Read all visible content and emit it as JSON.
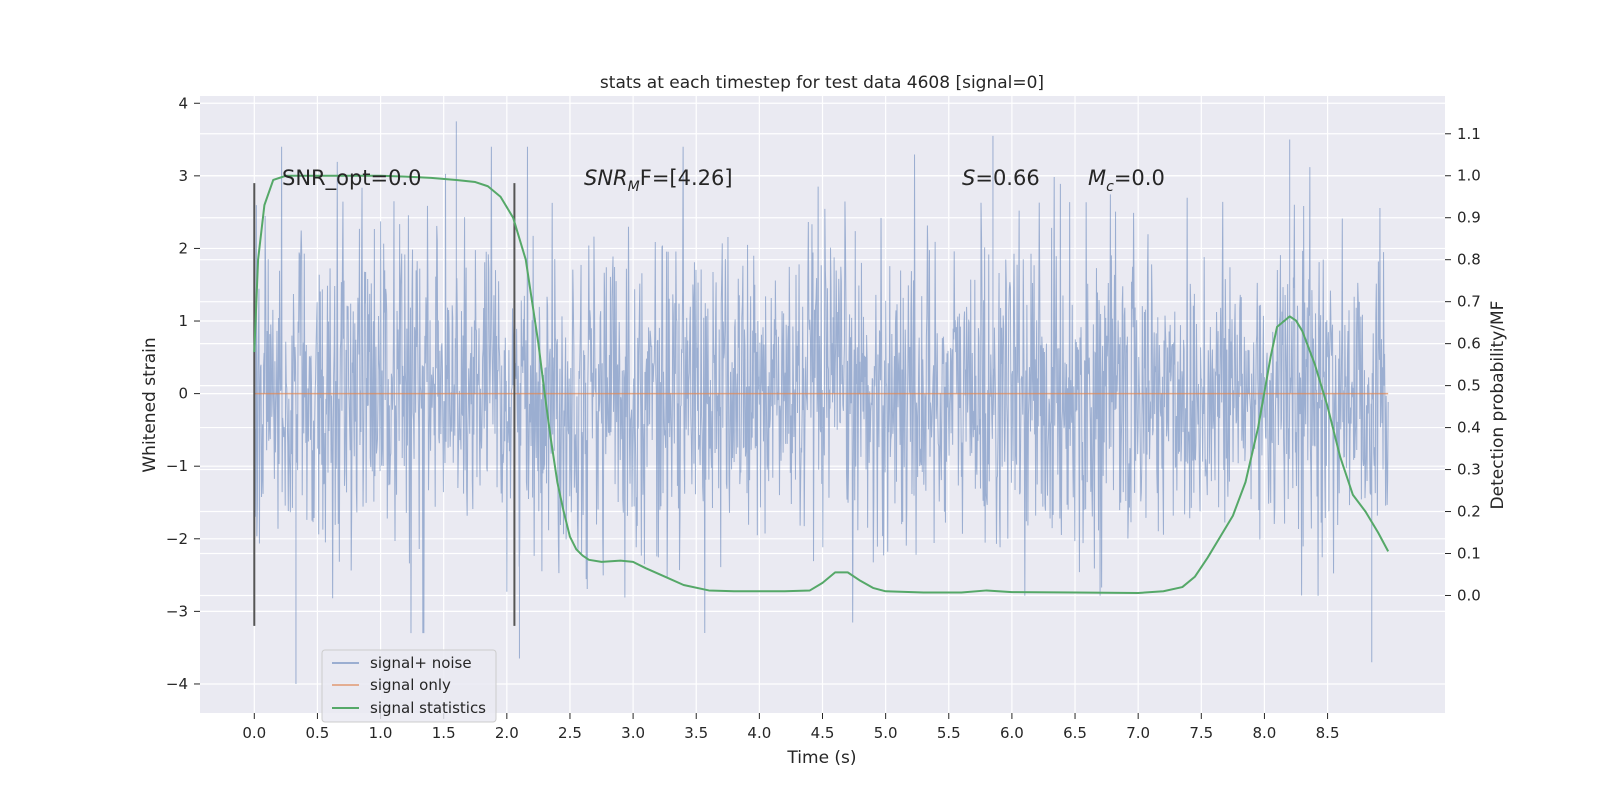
{
  "chart_data": {
    "type": "line",
    "title": "stats at each timestep for test data 4608 [signal=0]",
    "xlabel": "Time (s)",
    "ylabel": "Whitened strain",
    "y2label": "Detection probability/MF",
    "xlim": [
      -0.43,
      9.43
    ],
    "ylim": [
      -4.4,
      4.1
    ],
    "y2lim": [
      -0.28,
      1.19
    ],
    "x_ticks": [
      "0.0",
      "0.5",
      "1.0",
      "1.5",
      "2.0",
      "2.5",
      "3.0",
      "3.5",
      "4.0",
      "4.5",
      "5.0",
      "5.5",
      "6.0",
      "6.5",
      "7.0",
      "7.5",
      "8.0",
      "8.5"
    ],
    "y_ticks": [
      "4",
      "3",
      "2",
      "1",
      "0",
      "−1",
      "−2",
      "−3",
      "−4"
    ],
    "y2_ticks": [
      "1.1",
      "1.0",
      "0.9",
      "0.8",
      "0.7",
      "0.6",
      "0.5",
      "0.4",
      "0.3",
      "0.2",
      "0.1",
      "0.0"
    ],
    "grid": true,
    "legend_position": "lower-left",
    "annotations": {
      "snr_opt": "SNR_opt=0.0",
      "snr_mf_main": "SNR",
      "snr_mf_sub": "M",
      "snr_mf_rest": "F=[4.26]",
      "s_main": "S",
      "s_rest": "=0.66",
      "mc_main": "M",
      "mc_sub": "c",
      "mc_rest": "=0.0"
    },
    "vertical_lines_x": [
      0.0,
      2.06
    ],
    "series": [
      {
        "name": "signal+ noise",
        "color": "#4c72b0",
        "kind": "noise",
        "x_range": [
          0.0,
          8.98
        ],
        "envelope_max": [
          3.1,
          -3.2
        ],
        "typical_range": [
          -2.3,
          2.3
        ],
        "note_peaks": [
          [
            1.6,
            3.75
          ],
          [
            0.33,
            -4.0
          ],
          [
            8.85,
            -3.7
          ],
          [
            2.1,
            -3.65
          ],
          [
            8.2,
            3.5
          ],
          [
            5.85,
            3.55
          ]
        ]
      },
      {
        "name": "signal only",
        "color": "#dd8452",
        "x": [
          0.0,
          8.98
        ],
        "y": [
          0.0,
          0.0
        ]
      },
      {
        "name": "signal statistics",
        "color": "#55a868",
        "x": [
          0.0,
          0.03,
          0.08,
          0.15,
          0.25,
          0.4,
          0.6,
          0.8,
          1.0,
          1.2,
          1.4,
          1.6,
          1.75,
          1.85,
          1.95,
          2.05,
          2.15,
          2.25,
          2.3,
          2.35,
          2.4,
          2.45,
          2.5,
          2.55,
          2.6,
          2.65,
          2.75,
          2.9,
          3.0,
          3.1,
          3.25,
          3.4,
          3.6,
          3.8,
          4.0,
          4.2,
          4.4,
          4.5,
          4.6,
          4.7,
          4.8,
          4.9,
          5.0,
          5.3,
          5.6,
          5.8,
          6.0,
          6.5,
          7.0,
          7.2,
          7.35,
          7.45,
          7.55,
          7.65,
          7.75,
          7.85,
          7.95,
          8.05,
          8.1,
          8.2,
          8.25,
          8.3,
          8.4,
          8.5,
          8.6,
          8.7,
          8.8,
          8.9,
          8.98
        ],
        "y": [
          0.58,
          0.8,
          0.93,
          0.99,
          1.0,
          1.0,
          1.0,
          1.0,
          1.0,
          0.998,
          0.995,
          0.99,
          0.985,
          0.975,
          0.95,
          0.9,
          0.8,
          0.6,
          0.48,
          0.37,
          0.27,
          0.2,
          0.14,
          0.11,
          0.095,
          0.085,
          0.08,
          0.083,
          0.08,
          0.065,
          0.045,
          0.025,
          0.012,
          0.01,
          0.01,
          0.01,
          0.012,
          0.03,
          0.055,
          0.055,
          0.035,
          0.018,
          0.01,
          0.007,
          0.007,
          0.012,
          0.008,
          0.007,
          0.006,
          0.01,
          0.02,
          0.045,
          0.09,
          0.14,
          0.19,
          0.27,
          0.4,
          0.57,
          0.64,
          0.665,
          0.655,
          0.63,
          0.55,
          0.45,
          0.33,
          0.24,
          0.2,
          0.15,
          0.105
        ]
      }
    ]
  }
}
